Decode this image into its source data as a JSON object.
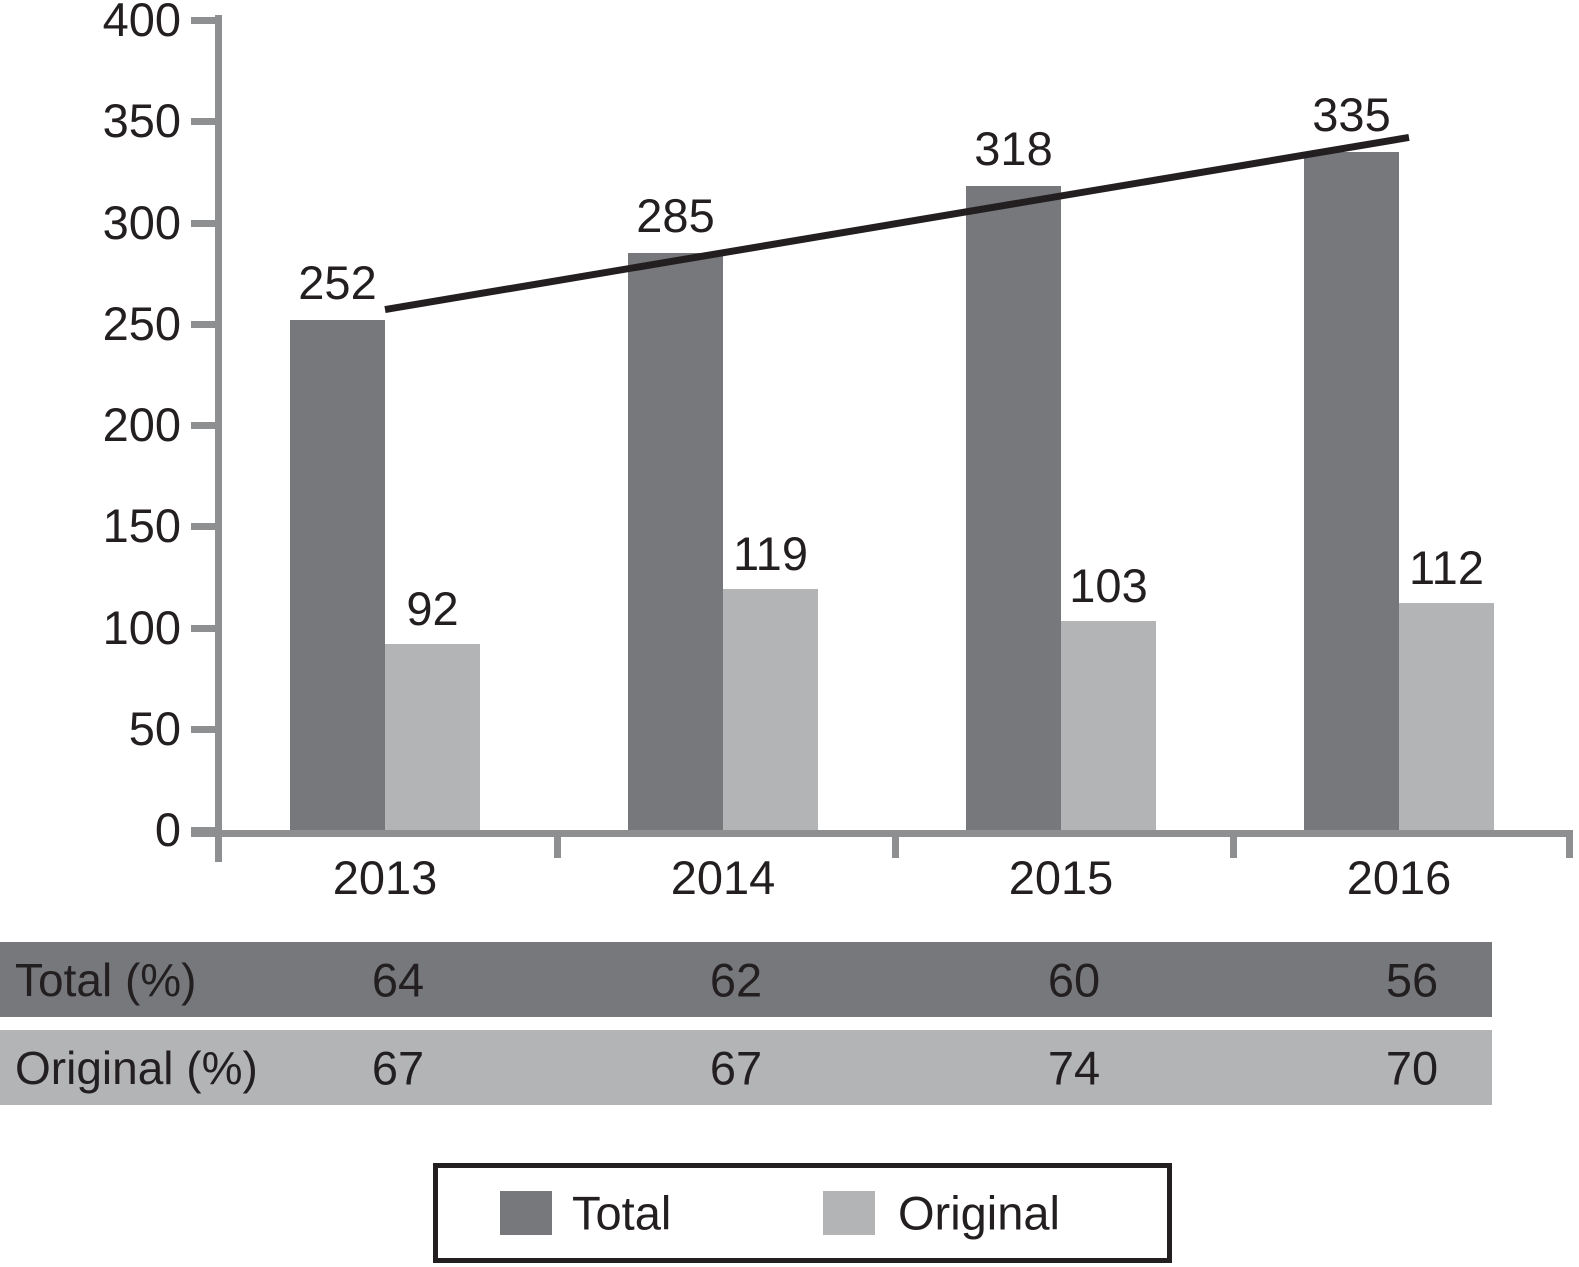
{
  "chart_data": {
    "type": "bar",
    "title": "",
    "xlabel": "",
    "ylabel": "",
    "categories": [
      "2013",
      "2014",
      "2015",
      "2016"
    ],
    "series": [
      {
        "name": "Total",
        "values": [
          252,
          285,
          318,
          335
        ],
        "color": "#76787b"
      },
      {
        "name": "Original",
        "values": [
          92,
          119,
          103,
          112
        ],
        "color": "#b2b4b6"
      }
    ],
    "bar_value_labels_shown": true,
    "ylim": [
      0,
      400
    ],
    "yticks": [
      0,
      50,
      100,
      150,
      200,
      250,
      300,
      350,
      400
    ],
    "grid": false,
    "legend_position": "bottom",
    "trend_line": {
      "series": "Total",
      "start_value": 257,
      "end_value": 342,
      "color": "#231f20"
    },
    "axis_color": "#8d8f91"
  },
  "table": {
    "rows": [
      {
        "label": "Total (%)",
        "values": [
          "64",
          "62",
          "60",
          "56"
        ],
        "bg": "#76787b"
      },
      {
        "label": "Original (%)",
        "values": [
          "67",
          "67",
          "74",
          "70"
        ],
        "bg": "#b2b4b6"
      }
    ]
  },
  "legend": {
    "items": [
      {
        "label": "Total",
        "color": "#76787b"
      },
      {
        "label": "Original",
        "color": "#b2b4b6"
      }
    ]
  }
}
